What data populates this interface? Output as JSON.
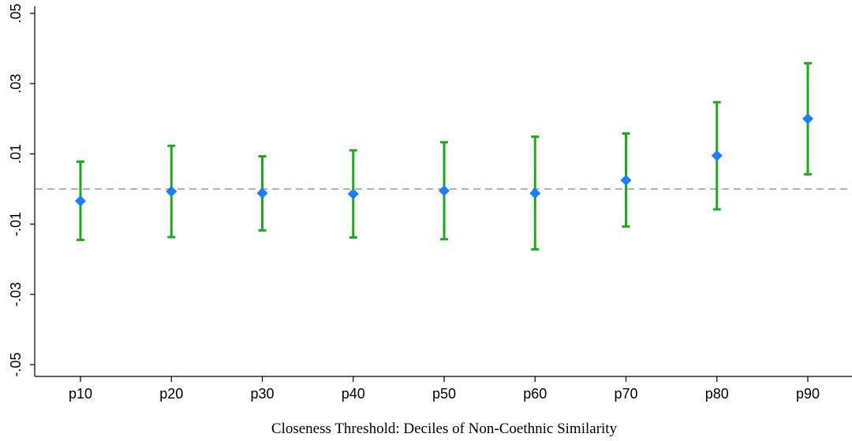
{
  "chart_data": {
    "type": "scatter",
    "xlabel": "Closeness Threshold: Deciles of Non-Coethnic Similarity",
    "ylabel": "",
    "categories": [
      "p10",
      "p20",
      "p30",
      "p40",
      "p50",
      "p60",
      "p70",
      "p80",
      "p90"
    ],
    "yticks": [
      ".05",
      ".03",
      ".01",
      "-.01",
      "-.03",
      "-.05"
    ],
    "ytick_values": [
      0.05,
      0.03,
      0.01,
      -0.01,
      -0.03,
      -0.05
    ],
    "ylim": [
      -0.055,
      0.055
    ],
    "reference_line": 0,
    "series": [
      {
        "estimate": [
          -0.0034,
          -0.0007,
          -0.0012,
          -0.0014,
          -0.0005,
          -0.0012,
          0.0025,
          0.0095,
          0.02
        ],
        "ci_low": [
          -0.0145,
          -0.0137,
          -0.0118,
          -0.0138,
          -0.0143,
          -0.0172,
          -0.0107,
          -0.0058,
          0.0042
        ],
        "ci_high": [
          0.0078,
          0.0123,
          0.0093,
          0.011,
          0.0133,
          0.0149,
          0.0158,
          0.0247,
          0.0358
        ]
      }
    ],
    "colors": {
      "marker": "#1a7fff",
      "error_bar": "#1aaa1a",
      "reference_line": "#999999",
      "axis": "#000000"
    },
    "grid": false,
    "legend": "none"
  }
}
